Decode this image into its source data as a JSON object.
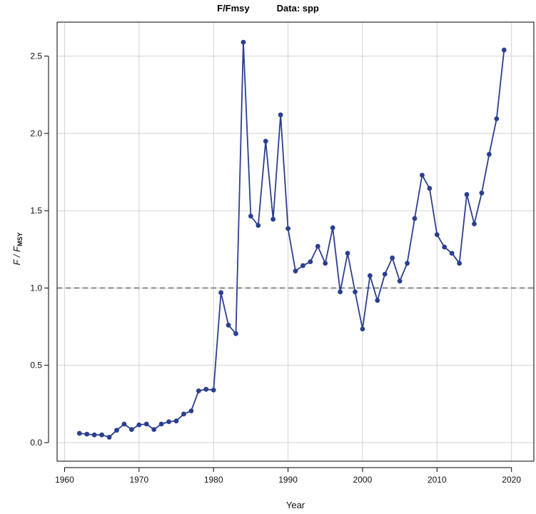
{
  "title": {
    "main": "F/Fmsy",
    "data_label": "Data: spp"
  },
  "chart_data": {
    "type": "line",
    "title": "F/Fmsy",
    "subtitle": "Data: spp",
    "xlabel": "Year",
    "ylabel_main": "F",
    "ylabel_sub_italic": "F",
    "ylabel_subscript": "MSY",
    "xlim": [
      1959,
      2023
    ],
    "ylim": [
      -0.12,
      2.72
    ],
    "xticks": [
      1960,
      1970,
      1980,
      1990,
      2000,
      2010,
      2020
    ],
    "yticks": [
      0.0,
      0.5,
      1.0,
      1.5,
      2.0,
      2.5
    ],
    "ytick_labels": [
      "0.0",
      "0.5",
      "1.0",
      "1.5",
      "2.0",
      "2.5"
    ],
    "grid": true,
    "reference_line": {
      "y": 1.0,
      "style": "dashed",
      "color": "#707070"
    },
    "series": [
      {
        "color": "#2b3f8f",
        "x": [
          1962,
          1963,
          1964,
          1965,
          1966,
          1967,
          1968,
          1969,
          1970,
          1971,
          1972,
          1973,
          1974,
          1975,
          1976,
          1977,
          1978,
          1979,
          1980,
          1981,
          1982,
          1983,
          1984,
          1985,
          1986,
          1987,
          1988,
          1989,
          1990,
          1991,
          1992,
          1993,
          1994,
          1995,
          1996,
          1997,
          1998,
          1999,
          2000,
          2001,
          2002,
          2003,
          2004,
          2005,
          2006,
          2007,
          2008,
          2009,
          2010,
          2011,
          2012,
          2013,
          2014,
          2015,
          2016,
          2017,
          2018,
          2019
        ],
        "y": [
          0.06,
          0.055,
          0.05,
          0.05,
          0.035,
          0.08,
          0.12,
          0.085,
          0.115,
          0.12,
          0.085,
          0.12,
          0.135,
          0.14,
          0.185,
          0.205,
          0.335,
          0.345,
          0.34,
          0.97,
          0.76,
          0.705,
          2.59,
          1.465,
          1.405,
          1.95,
          1.445,
          2.12,
          1.385,
          1.11,
          1.145,
          1.17,
          1.27,
          1.16,
          1.39,
          0.975,
          1.225,
          0.975,
          0.735,
          1.08,
          0.92,
          1.09,
          1.195,
          1.045,
          1.16,
          1.45,
          1.73,
          1.645,
          1.345,
          1.265,
          1.225,
          1.16,
          1.605,
          1.415,
          1.615,
          1.865,
          2.095,
          2.54
        ]
      }
    ]
  }
}
